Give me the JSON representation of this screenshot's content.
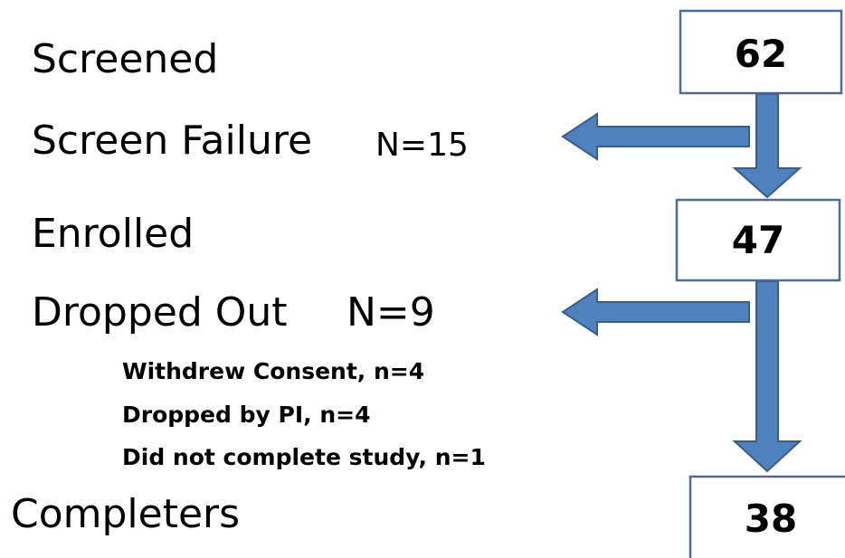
{
  "stages": [
    {
      "label": "Screened",
      "count": 62
    },
    {
      "label": "Enrolled",
      "count": 47
    },
    {
      "label": "Completers",
      "count": 38
    }
  ],
  "exits": [
    {
      "label": "Screen Failure",
      "n": "N=15"
    },
    {
      "label": "Dropped Out",
      "n": "N=9",
      "reasons": [
        "Withdrew Consent, n=4",
        "Dropped by PI, n=4",
        "Did not complete study, n=1"
      ]
    }
  ]
}
